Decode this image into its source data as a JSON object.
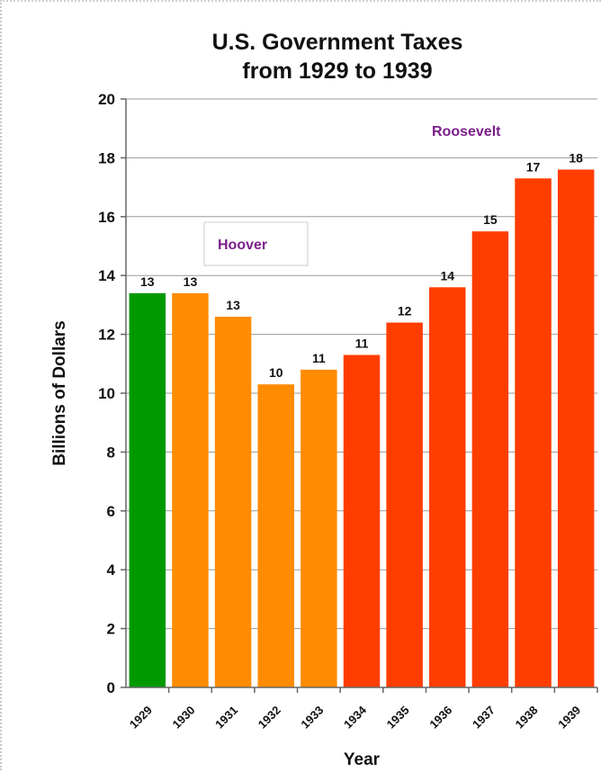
{
  "chart_data": {
    "type": "bar",
    "title": [
      "U.S. Government Taxes",
      "from 1929 to 1939"
    ],
    "xlabel": "Year",
    "ylabel": "Billions of Dollars",
    "ylim": [
      0,
      20
    ],
    "yticks": [
      "0",
      "2",
      "4",
      "6",
      "8",
      "10",
      "12",
      "14",
      "16",
      "18",
      "20"
    ],
    "grid": true,
    "categories": [
      "1929",
      "1930",
      "1931",
      "1932",
      "1933",
      "1934",
      "1935",
      "1936",
      "1937",
      "1938",
      "1939"
    ],
    "values": [
      13.4,
      13.4,
      12.6,
      10.3,
      10.8,
      11.3,
      12.4,
      13.6,
      15.5,
      17.3,
      17.6
    ],
    "data_labels": [
      "13",
      "13",
      "13",
      "10",
      "11",
      "11",
      "12",
      "14",
      "15",
      "17",
      "18"
    ],
    "colors": [
      "#009900",
      "#ff8c00",
      "#ff8c00",
      "#ff8c00",
      "#ff8c00",
      "#ff3d00",
      "#ff3d00",
      "#ff3d00",
      "#ff3d00",
      "#ff3d00",
      "#ff3d00"
    ],
    "annotations": [
      {
        "text": "Hoover",
        "color": "#7b1f8a",
        "boxed": true
      },
      {
        "text": "Roosevelt",
        "color": "#7b1f8a",
        "boxed": false
      }
    ]
  }
}
